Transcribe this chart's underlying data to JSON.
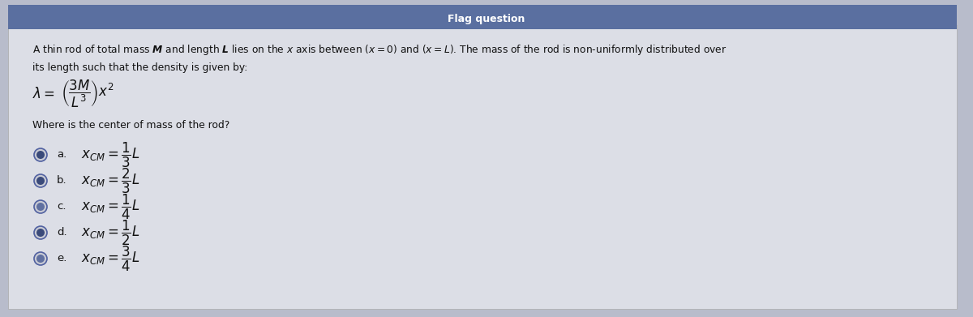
{
  "bg_color": "#b8bccb",
  "panel_color": "#d8dae2",
  "title_bar_color": "#5a6fa0",
  "title_text": "Flag question",
  "body_text_line1": "A thin rod of total mass $\\boldsymbol{M}$ and length $\\boldsymbol{L}$ lies on the $x$ axis between $(x=0)$ and $(x=L)$. The mass of the rod is non-uniformly distributed over",
  "body_text_line2": "its length such that the density is given by:",
  "formula_prefix": "$\\lambda=$",
  "formula_frac": "$\\left(\\dfrac{3M}{L^3}\\right)x^2$",
  "question": "Where is the center of mass of the rod?",
  "options": [
    {
      "label": "a.",
      "text": "$x_{CM} = \\dfrac{1}{3}L$"
    },
    {
      "label": "b.",
      "text": "$x_{CM} = \\dfrac{2}{3}L$"
    },
    {
      "label": "c.",
      "text": "$x_{CM} = \\dfrac{1}{4}L$"
    },
    {
      "label": "d.",
      "text": "$x_{CM} = \\dfrac{1}{2}L$"
    },
    {
      "label": "e.",
      "text": "$x_{CM} = \\dfrac{3}{4}L$"
    }
  ],
  "text_color": "#111111",
  "circle_colors": [
    "#3a4a7a",
    "#3a4a7a",
    "#6070a0",
    "#3a4a7a",
    "#6070a0"
  ]
}
